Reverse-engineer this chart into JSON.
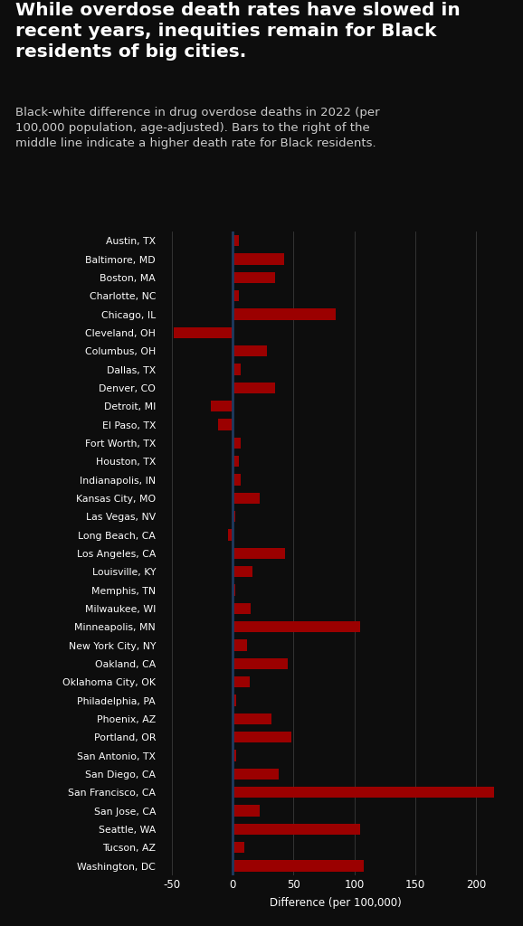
{
  "title": "While overdose death rates have slowed in\nrecent years, inequities remain for Black\nresidents of big cities.",
  "subtitle": "Black-white difference in drug overdose deaths in 2022 (per\n100,000 population, age-adjusted). Bars to the right of the\nmiddle line indicate a higher death rate for Black residents.",
  "xlabel": "Difference (per 100,000)",
  "cities": [
    "Austin, TX",
    "Baltimore, MD",
    "Boston, MA",
    "Charlotte, NC",
    "Chicago, IL",
    "Cleveland, OH",
    "Columbus, OH",
    "Dallas, TX",
    "Denver, CO",
    "Detroit, MI",
    "El Paso, TX",
    "Fort Worth, TX",
    "Houston, TX",
    "Indianapolis, IN",
    "Kansas City, MO",
    "Las Vegas, NV",
    "Long Beach, CA",
    "Los Angeles, CA",
    "Louisville, KY",
    "Memphis, TN",
    "Milwaukee, WI",
    "Minneapolis, MN",
    "New York City, NY",
    "Oakland, CA",
    "Oklahoma City, OK",
    "Philadelphia, PA",
    "Phoenix, AZ",
    "Portland, OR",
    "San Antonio, TX",
    "San Diego, CA",
    "San Francisco, CA",
    "San Jose, CA",
    "Seattle, WA",
    "Tucson, AZ",
    "Washington, DC"
  ],
  "values": [
    5,
    42,
    35,
    5,
    85,
    -48,
    28,
    7,
    35,
    -18,
    -12,
    7,
    5,
    7,
    22,
    2,
    -4,
    43,
    16,
    2,
    15,
    105,
    12,
    45,
    14,
    3,
    32,
    48,
    3,
    38,
    215,
    22,
    105,
    10,
    108
  ],
  "bar_color": "#9B0000",
  "background_color": "#0d0d0d",
  "text_color": "#ffffff",
  "grid_color": "#3a3a3a",
  "zero_line_color": "#1e3a5f",
  "xlim": [
    -60,
    230
  ],
  "xticks": [
    -50,
    0,
    50,
    100,
    150,
    200
  ],
  "title_fontsize": 14.5,
  "subtitle_fontsize": 9.5,
  "label_fontsize": 7.8,
  "tick_fontsize": 8.5
}
